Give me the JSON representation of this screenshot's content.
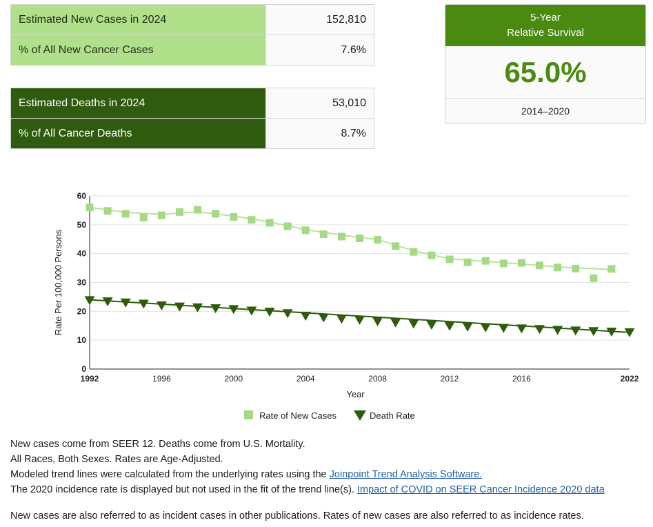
{
  "new_cases_table": {
    "rows": [
      {
        "label": "Estimated New Cases in 2024",
        "value": "152,810"
      },
      {
        "label": "% of All New Cancer Cases",
        "value": "7.6%"
      }
    ]
  },
  "deaths_table": {
    "rows": [
      {
        "label": "Estimated Deaths in 2024",
        "value": "53,010"
      },
      {
        "label": "% of All Cancer Deaths",
        "value": "8.7%"
      }
    ]
  },
  "survival": {
    "title_line1": "5-Year",
    "title_line2": "Relative Survival",
    "value": "65.0%",
    "years": "2014–2020"
  },
  "colors": {
    "new_cases": "#a6d985",
    "new_cases_line": "#b9e29c",
    "deaths": "#2e5c0b",
    "survival_accent": "#4a8a10"
  },
  "chart_data": {
    "type": "line",
    "xlabel": "Year",
    "ylabel": "Rate Per 100,000 Persons",
    "xlim": [
      1992,
      2022
    ],
    "ylim": [
      0,
      60
    ],
    "x_ticks": [
      1992,
      1996,
      2000,
      2004,
      2008,
      2012,
      2016,
      2022
    ],
    "y_ticks": [
      0,
      10,
      20,
      30,
      40,
      50,
      60
    ],
    "grid": true,
    "legend_position": "bottom",
    "series": [
      {
        "name": "Rate of New Cases",
        "marker": "square",
        "x": [
          1992,
          1993,
          1994,
          1995,
          1996,
          1997,
          1998,
          1999,
          2000,
          2001,
          2002,
          2003,
          2004,
          2005,
          2006,
          2007,
          2008,
          2009,
          2010,
          2011,
          2012,
          2013,
          2014,
          2015,
          2016,
          2017,
          2018,
          2019,
          2020,
          2021
        ],
        "values": [
          56.0,
          54.8,
          53.8,
          52.5,
          53.3,
          54.4,
          55.2,
          53.8,
          52.7,
          51.7,
          50.7,
          49.5,
          48.1,
          46.7,
          45.9,
          45.3,
          44.8,
          42.6,
          40.6,
          39.4,
          38.0,
          37.0,
          37.5,
          36.6,
          36.8,
          35.9,
          35.2,
          34.8,
          31.5,
          34.7
        ],
        "trend": [
          [
            1992,
            56.0
          ],
          [
            1994,
            54.3
          ],
          [
            1996,
            53.6
          ],
          [
            1998,
            54.5
          ],
          [
            2000,
            53.0
          ],
          [
            2002,
            51.0
          ],
          [
            2004,
            48.3
          ],
          [
            2006,
            46.4
          ],
          [
            2008,
            44.9
          ],
          [
            2010,
            41.0
          ],
          [
            2012,
            38.2
          ],
          [
            2014,
            37.3
          ],
          [
            2016,
            36.4
          ],
          [
            2018,
            35.4
          ],
          [
            2021,
            34.5
          ]
        ]
      },
      {
        "name": "Death Rate",
        "marker": "triangle-down",
        "x": [
          1992,
          1993,
          1994,
          1995,
          1996,
          1997,
          1998,
          1999,
          2000,
          2001,
          2002,
          2003,
          2004,
          2005,
          2006,
          2007,
          2008,
          2009,
          2010,
          2011,
          2012,
          2013,
          2014,
          2015,
          2016,
          2017,
          2018,
          2019,
          2020,
          2021,
          2022
        ],
        "values": [
          23.8,
          23.4,
          23.0,
          22.6,
          22.0,
          21.6,
          21.3,
          21.0,
          20.7,
          20.2,
          19.8,
          19.3,
          18.4,
          17.8,
          17.4,
          17.0,
          16.5,
          16.1,
          15.7,
          15.3,
          14.9,
          14.6,
          14.4,
          14.2,
          14.0,
          13.8,
          13.5,
          13.3,
          13.1,
          12.9,
          12.7
        ],
        "trend": [
          [
            1992,
            24.0
          ],
          [
            2022,
            12.7
          ]
        ]
      }
    ]
  },
  "notes": {
    "line1": "New cases come from SEER 12. Deaths come from U.S. Mortality.",
    "line2": "All Races, Both Sexes. Rates are Age-Adjusted.",
    "line3_text": "Modeled trend lines were calculated from the underlying rates using the ",
    "line3_link": "Joinpoint Trend Analysis Software.",
    "line4_text": "The 2020 incidence rate is displayed but not used in the fit of the trend line(s). ",
    "line4_link": "Impact of COVID on SEER Cancer Incidence 2020 data",
    "line5": "New cases are also referred to as incident cases in other publications. Rates of new cases are also referred to as incidence rates."
  }
}
